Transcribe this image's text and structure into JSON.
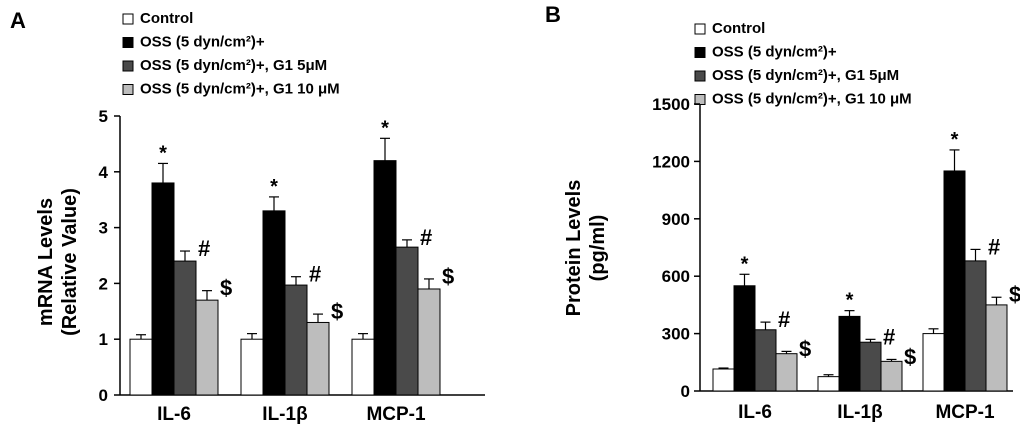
{
  "colors": {
    "control": "#ffffff",
    "oss": "#000000",
    "oss_g1_5": "#4a4a4a",
    "oss_g1_10": "#bdbdbd",
    "axis": "#000000"
  },
  "legend": [
    {
      "series": "control",
      "label": "Control"
    },
    {
      "series": "oss",
      "label": "OSS (5 dyn/cm²)+"
    },
    {
      "series": "oss_g1_5",
      "label": "OSS (5 dyn/cm²)+, G1 5μM"
    },
    {
      "series": "oss_g1_10",
      "label": "OSS (5 dyn/cm²)+, G1 10 μM"
    }
  ],
  "chart_data": [
    {
      "panel": "A",
      "type": "bar",
      "title": "",
      "ylabel_line1": "mRNA Levels",
      "ylabel_line2": "(Relative Value)",
      "xlabel": "",
      "ylim": [
        0,
        5
      ],
      "yticks": [
        "0",
        "1",
        "2",
        "3",
        "4",
        "5"
      ],
      "categories": [
        "IL-6",
        "IL-1β",
        "MCP-1"
      ],
      "series": [
        {
          "name": "Control",
          "key": "control",
          "values": [
            1.0,
            1.0,
            1.0
          ],
          "errors": [
            0.08,
            0.1,
            0.1
          ],
          "marks": [
            "",
            "",
            ""
          ]
        },
        {
          "name": "OSS (5 dyn/cm²)+",
          "key": "oss",
          "values": [
            3.8,
            3.3,
            4.2
          ],
          "errors": [
            0.35,
            0.25,
            0.4
          ],
          "marks": [
            "*",
            "*",
            "*"
          ]
        },
        {
          "name": "OSS (5 dyn/cm²)+, G1 5μM",
          "key": "oss_g1_5",
          "values": [
            2.4,
            1.97,
            2.65
          ],
          "errors": [
            0.18,
            0.15,
            0.13
          ],
          "marks": [
            "#",
            "#",
            "#"
          ]
        },
        {
          "name": "OSS (5 dyn/cm²)+, G1 10 μM",
          "key": "oss_g1_10",
          "values": [
            1.7,
            1.3,
            1.9
          ],
          "errors": [
            0.17,
            0.15,
            0.18
          ],
          "marks": [
            "$",
            "$",
            "$"
          ]
        }
      ]
    },
    {
      "panel": "B",
      "type": "bar",
      "title": "",
      "ylabel_line1": "Protein Levels",
      "ylabel_line2": "(pg/ml)",
      "xlabel": "",
      "ylim": [
        0,
        1500
      ],
      "yticks": [
        "0",
        "300",
        "600",
        "900",
        "1200",
        "1500"
      ],
      "categories": [
        "IL-6",
        "IL-1β",
        "MCP-1"
      ],
      "series": [
        {
          "name": "Control",
          "key": "control",
          "values": [
            115,
            75,
            300
          ],
          "errors": [
            5,
            10,
            25
          ],
          "marks": [
            "",
            "",
            ""
          ]
        },
        {
          "name": "OSS (5 dyn/cm²)+",
          "key": "oss",
          "values": [
            550,
            390,
            1150
          ],
          "errors": [
            60,
            30,
            110
          ],
          "marks": [
            "*",
            "*",
            "*"
          ]
        },
        {
          "name": "OSS (5 dyn/cm²)+, G1 5μM",
          "key": "oss_g1_5",
          "values": [
            320,
            255,
            680
          ],
          "errors": [
            40,
            15,
            60
          ],
          "marks": [
            "#",
            "#",
            "#"
          ]
        },
        {
          "name": "OSS (5 dyn/cm²)+, G1 10 μM",
          "key": "oss_g1_10",
          "values": [
            195,
            155,
            450
          ],
          "errors": [
            12,
            10,
            40
          ],
          "marks": [
            "$",
            "$",
            "$"
          ]
        }
      ]
    }
  ]
}
